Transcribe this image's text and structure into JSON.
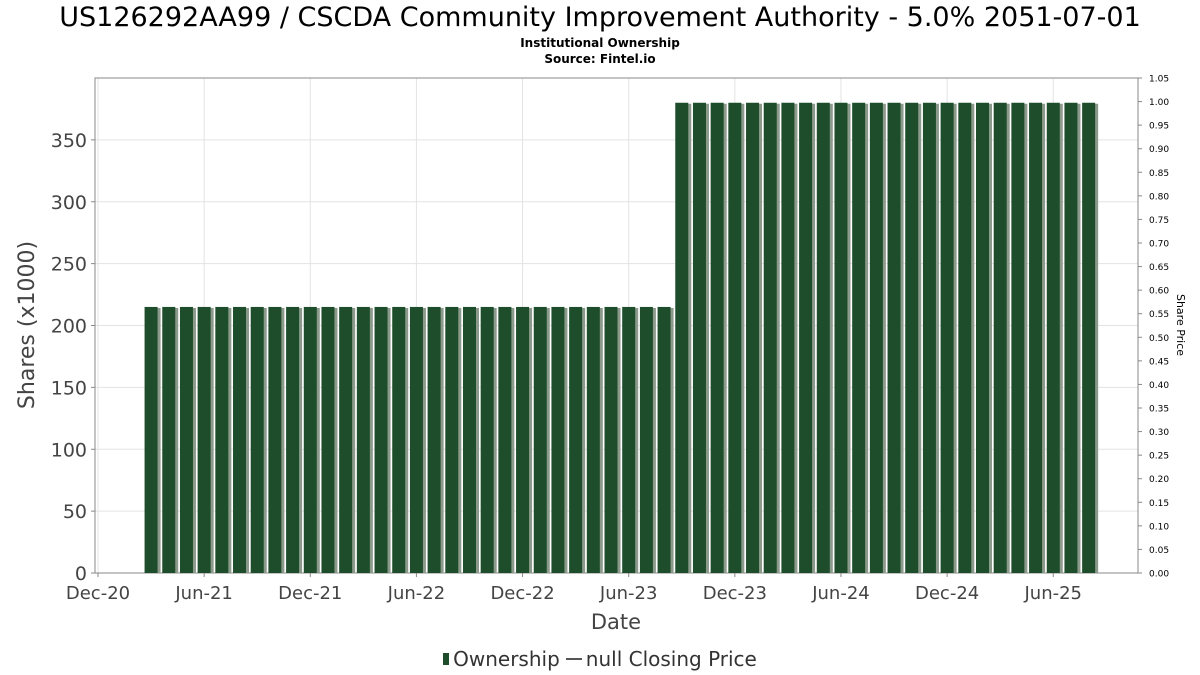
{
  "header": {
    "title": "US126292AA99 / CSCDA Community Improvement Authority - 5.0% 2051-07-01",
    "subtitle1": "Institutional Ownership",
    "subtitle2": "Source: Fintel.io"
  },
  "legend": {
    "ownership_label": "Ownership",
    "price_label": "null Closing Price"
  },
  "chart_data": {
    "type": "bar",
    "xlabel": "Date",
    "ylabel": "Shares (x1000)",
    "y2label": "Share Price",
    "x_ticks": [
      "Dec-20",
      "Jun-21",
      "Dec-21",
      "Jun-22",
      "Dec-22",
      "Jun-23",
      "Dec-23",
      "Jun-24",
      "Dec-24",
      "Jun-25"
    ],
    "y_ticks": [
      "0",
      "50",
      "100",
      "150",
      "200",
      "250",
      "300",
      "350"
    ],
    "y2_ticks": [
      "0.00",
      "0.05",
      "0.10",
      "0.15",
      "0.20",
      "0.25",
      "0.30",
      "0.35",
      "0.40",
      "0.45",
      "0.50",
      "0.55",
      "0.60",
      "0.65",
      "0.70",
      "0.75",
      "0.80",
      "0.85",
      "0.90",
      "0.95",
      "1.00",
      "1.05"
    ],
    "ylim": [
      0,
      400
    ],
    "y2lim": [
      0,
      1.05
    ],
    "grid": true,
    "legend_position": "bottom",
    "colors": {
      "bar": "#1e4d2b",
      "bar_shadow": "#8c9a8c",
      "grid": "#e3e3e3",
      "axis": "#888888"
    },
    "series": [
      {
        "name": "Ownership",
        "x": [
          "2021-03",
          "2021-04",
          "2021-05",
          "2021-06",
          "2021-07",
          "2021-08",
          "2021-09",
          "2021-10",
          "2021-11",
          "2021-12",
          "2022-01",
          "2022-02",
          "2022-03",
          "2022-04",
          "2022-05",
          "2022-06",
          "2022-07",
          "2022-08",
          "2022-09",
          "2022-10",
          "2022-11",
          "2022-12",
          "2023-01",
          "2023-02",
          "2023-03",
          "2023-04",
          "2023-05",
          "2023-06",
          "2023-07",
          "2023-08",
          "2023-09",
          "2023-10",
          "2023-11",
          "2023-12",
          "2024-01",
          "2024-02",
          "2024-03",
          "2024-04",
          "2024-05",
          "2024-06",
          "2024-07",
          "2024-08",
          "2024-09",
          "2024-10",
          "2024-11",
          "2024-12",
          "2025-01",
          "2025-02",
          "2025-03",
          "2025-04",
          "2025-05",
          "2025-06",
          "2025-07",
          "2025-08"
        ],
        "values": [
          215,
          215,
          215,
          215,
          215,
          215,
          215,
          215,
          215,
          215,
          215,
          215,
          215,
          215,
          215,
          215,
          215,
          215,
          215,
          215,
          215,
          215,
          215,
          215,
          215,
          215,
          215,
          215,
          215,
          215,
          380,
          380,
          380,
          380,
          380,
          380,
          380,
          380,
          380,
          380,
          380,
          380,
          380,
          380,
          380,
          380,
          380,
          380,
          380,
          380,
          380,
          380,
          380,
          380
        ]
      }
    ]
  }
}
